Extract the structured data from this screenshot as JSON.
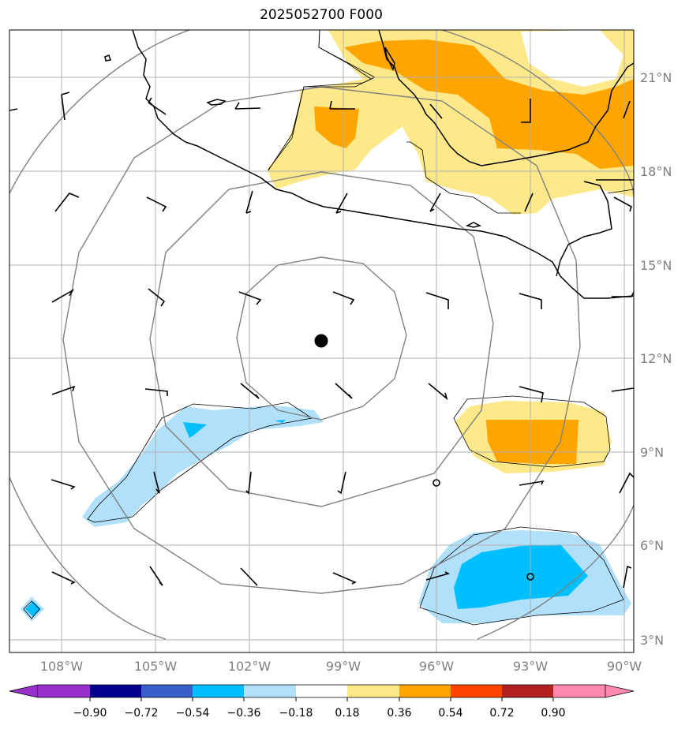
{
  "title": "2025052700 F000",
  "map": {
    "lon_labels": [
      "108°W",
      "105°W",
      "102°W",
      "99°W",
      "96°W",
      "93°W",
      "90°W"
    ],
    "lat_labels": [
      "21°N",
      "18°N",
      "15°N",
      "12°N",
      "9°N",
      "6°N",
      "3°N"
    ],
    "center_marker": {
      "lon": -99.7,
      "lat": 12.6
    },
    "colors": {
      "positive_light": "#fde98a",
      "positive_dark": "#ffa500",
      "negative_light": "#b0e0fa",
      "negative_dark": "#00bfff",
      "grid": "#b0b0b0",
      "range_rings": "#808080",
      "coastline": "#000000"
    }
  },
  "colorbar": {
    "ticks": [
      "−0.90",
      "−0.72",
      "−0.54",
      "−0.36",
      "−0.18",
      "0.18",
      "0.36",
      "0.54",
      "0.72",
      "0.90"
    ],
    "colors": [
      "#9932cc",
      "#00008b",
      "#3a5fcd",
      "#00bfff",
      "#b0e0fa",
      "#ffffff",
      "#fde98a",
      "#ffa500",
      "#ff4500",
      "#b22222",
      "#ff88b0"
    ]
  }
}
